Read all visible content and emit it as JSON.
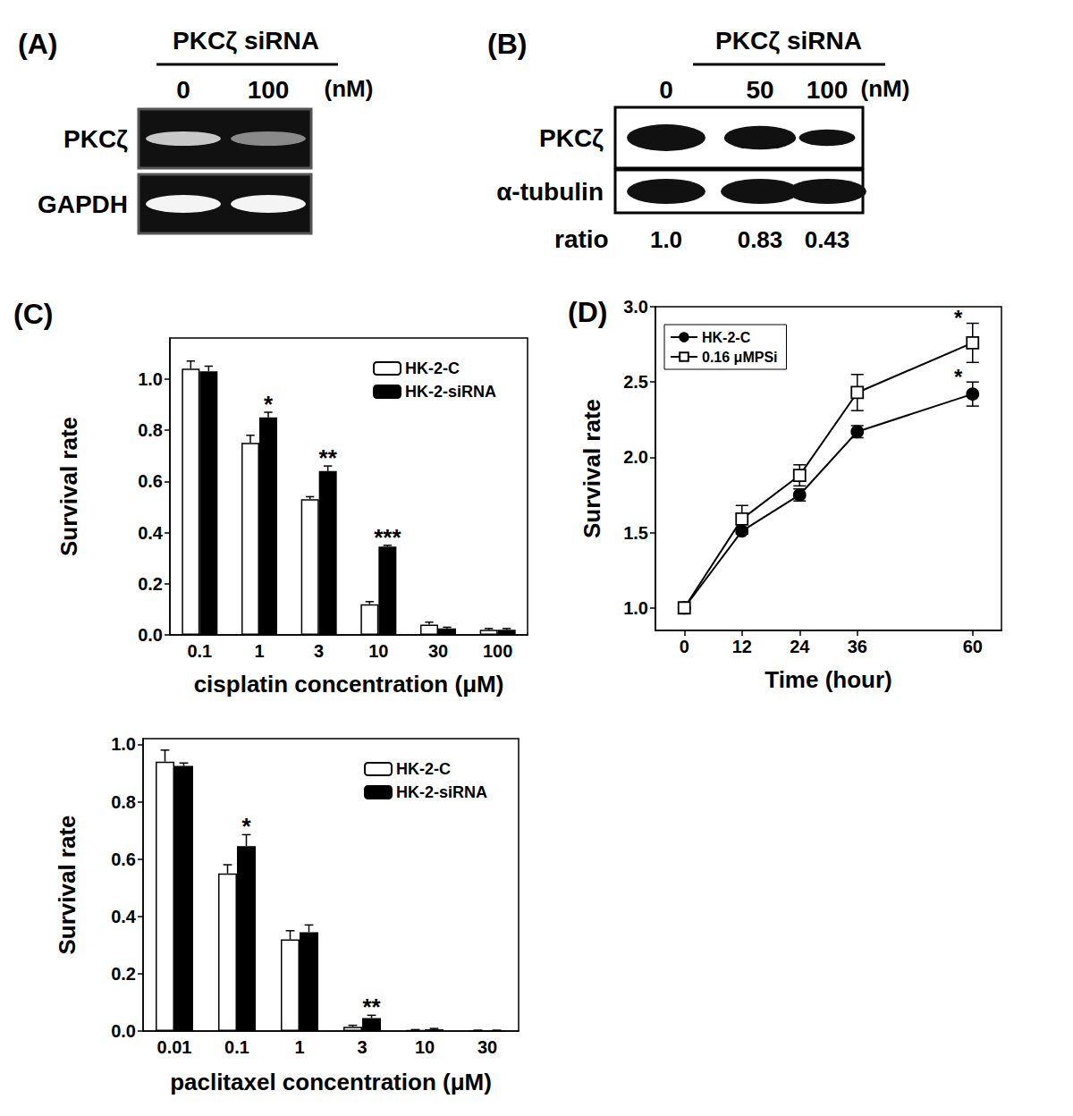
{
  "panels": {
    "A": {
      "label": "(A)",
      "treatment": "PKCζ siRNA",
      "doses": [
        "0",
        "100"
      ],
      "unit": "(nM)",
      "rows": [
        "PKCζ",
        "GAPDH"
      ]
    },
    "B": {
      "label": "(B)",
      "treatment": "PKCζ siRNA",
      "doses": [
        "0",
        "50",
        "100"
      ],
      "unit": "(nM)",
      "rows": [
        "PKCζ",
        "α-tubulin"
      ],
      "ratio_label": "ratio",
      "ratios": [
        "1.0",
        "0.83",
        "0.43"
      ]
    }
  },
  "chart_data": [
    {
      "type": "bar",
      "title": "(C)",
      "x_label": "cisplatin concentration (μM)",
      "y_label": "Survival rate",
      "categories": [
        "0.1",
        "1",
        "3",
        "10",
        "30",
        "100"
      ],
      "series": [
        {
          "name": "HK-2-C",
          "color": "#ffffff",
          "values": [
            1.04,
            0.75,
            0.53,
            0.12,
            0.04,
            0.02
          ],
          "errors": [
            0.03,
            0.03,
            0.01,
            0.01,
            0.01,
            0.005
          ]
        },
        {
          "name": "HK-2-siRNA",
          "color": "#000000",
          "values": [
            1.03,
            0.85,
            0.64,
            0.345,
            0.025,
            0.02
          ],
          "errors": [
            0.02,
            0.02,
            0.02,
            0.005,
            0.005,
            0.005
          ]
        }
      ],
      "ylim": [
        0,
        1.16
      ],
      "yticks": [
        {
          "value": 0,
          "label": "0.0"
        },
        0.2,
        0.4,
        0.6,
        0.8,
        {
          "value": 1,
          "label": "1.0"
        }
      ],
      "grid": false,
      "legend": "upper right",
      "annotations": [
        {
          "category": "1",
          "text": "*"
        },
        {
          "category": "3",
          "text": "**"
        },
        {
          "category": "10",
          "text": "***"
        }
      ]
    },
    {
      "type": "bar",
      "x_label": "paclitaxel concentration (μM)",
      "y_label": "Survival rate",
      "categories": [
        "0.01",
        "0.1",
        "1",
        "3",
        "10",
        "30"
      ],
      "series": [
        {
          "name": "HK-2-C",
          "color": "#ffffff",
          "values": [
            0.94,
            0.55,
            0.32,
            0.015,
            0.003,
            0.002
          ],
          "errors": [
            0.04,
            0.03,
            0.03,
            0.005,
            0.002,
            0.001
          ]
        },
        {
          "name": "HK-2-siRNA",
          "color": "#000000",
          "values": [
            0.925,
            0.645,
            0.345,
            0.045,
            0.006,
            0.002
          ],
          "errors": [
            0.01,
            0.04,
            0.025,
            0.01,
            0.003,
            0.001
          ]
        }
      ],
      "ylim": [
        0,
        1.02
      ],
      "yticks": [
        {
          "value": 0,
          "label": "0.0"
        },
        0.2,
        0.4,
        0.6,
        0.8,
        {
          "value": 1,
          "label": "1.0"
        }
      ],
      "grid": false,
      "legend": "upper right",
      "annotations": [
        {
          "category": "0.1",
          "text": "*"
        },
        {
          "category": "3",
          "text": "**"
        }
      ]
    },
    {
      "type": "line",
      "title": "(D)",
      "x_label": "Time (hour)",
      "y_label": "Survival rate",
      "x": [
        0,
        12,
        24,
        36,
        60
      ],
      "series": [
        {
          "name": "HK-2-C",
          "color": "#000000",
          "marker": "circle",
          "values": [
            1.0,
            1.51,
            1.75,
            2.17,
            2.42
          ],
          "errors": [
            0,
            0.02,
            0.04,
            0.04,
            0.08
          ]
        },
        {
          "name": "0.16 μMPSi",
          "color": "#000000",
          "marker": "open-square",
          "values": [
            1.0,
            1.59,
            1.88,
            2.43,
            2.76
          ],
          "errors": [
            0,
            0.09,
            0.07,
            0.12,
            0.13
          ]
        }
      ],
      "xlim": [
        -6,
        66
      ],
      "xticks": [
        0,
        12,
        24,
        36,
        60
      ],
      "ylim": [
        0.85,
        3.0
      ],
      "yticks": [
        {
          "value": 1,
          "label": "1.0"
        },
        1.5,
        {
          "value": 2,
          "label": "2.0"
        },
        2.5,
        {
          "value": 3,
          "label": "3.0"
        }
      ],
      "grid": false,
      "legend": "upper left",
      "annotations": [
        {
          "x": 60,
          "series": "HK-2-C",
          "text": "*"
        },
        {
          "x": 60,
          "series": "0.16 μMPSi",
          "text": "*"
        }
      ]
    }
  ]
}
